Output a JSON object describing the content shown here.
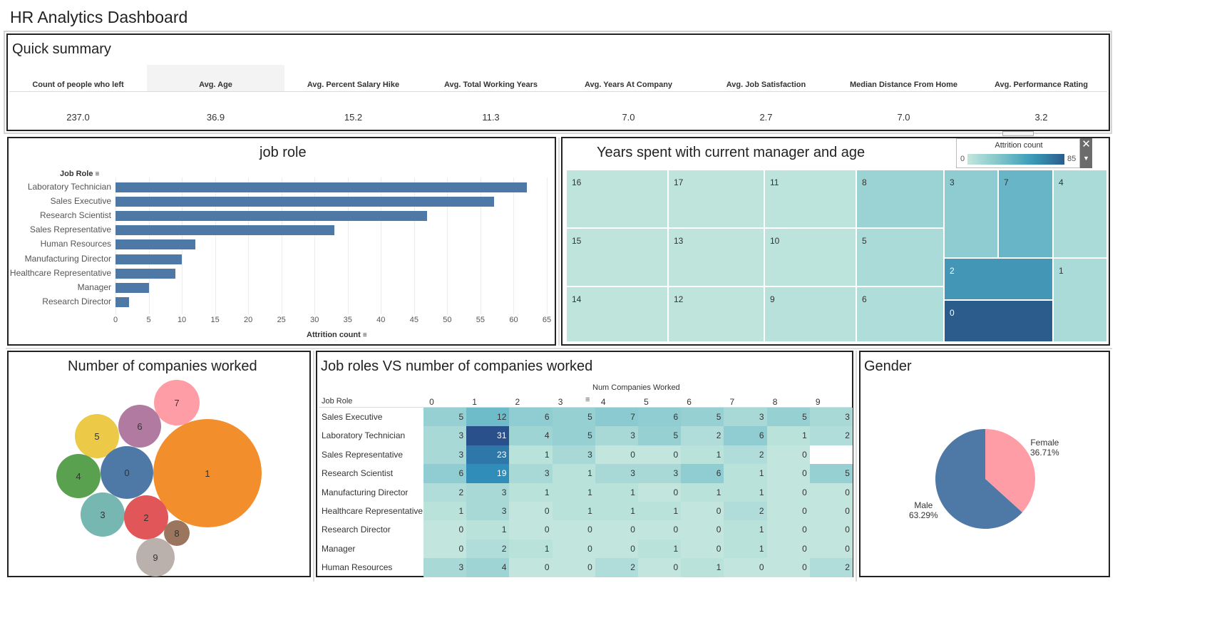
{
  "page": {
    "title": "HR Analytics Dashboard"
  },
  "summary": {
    "title": "Quick summary",
    "columns": [
      {
        "label": "Count of people who left",
        "value": "237.0"
      },
      {
        "label": "Avg. Age",
        "value": "36.9"
      },
      {
        "label": "Avg. Percent Salary Hike",
        "value": "15.2"
      },
      {
        "label": "Avg. Total Working Years",
        "value": "11.3"
      },
      {
        "label": "Avg. Years At Company",
        "value": "7.0"
      },
      {
        "label": "Avg. Job Satisfaction",
        "value": "2.7"
      },
      {
        "label": "Median Distance From Home",
        "value": "7.0"
      },
      {
        "label": "Avg. Performance Rating",
        "value": "3.2"
      }
    ]
  },
  "job_role_chart": {
    "title": "job role",
    "row_header": "Job Role",
    "xlabel": "Attrition count",
    "ticks": [
      "0",
      "5",
      "10",
      "15",
      "20",
      "25",
      "30",
      "35",
      "40",
      "45",
      "50",
      "55",
      "60",
      "65"
    ]
  },
  "treemap": {
    "title": "Years spent with current manager and age",
    "legend": {
      "title": "Attrition count",
      "min": "0",
      "max": "85"
    },
    "cells": [
      {
        "label": "16",
        "value": 2
      },
      {
        "label": "17",
        "value": 2
      },
      {
        "label": "11",
        "value": 3
      },
      {
        "label": "8",
        "value": 20
      },
      {
        "label": "3",
        "value": 25
      },
      {
        "label": "7",
        "value": 40
      },
      {
        "label": "4",
        "value": 12
      },
      {
        "label": "15",
        "value": 2
      },
      {
        "label": "13",
        "value": 2
      },
      {
        "label": "10",
        "value": 3
      },
      {
        "label": "5",
        "value": 12
      },
      {
        "label": "2",
        "value": 55
      },
      {
        "label": "1",
        "value": 12
      },
      {
        "label": "14",
        "value": 2
      },
      {
        "label": "12",
        "value": 2
      },
      {
        "label": "9",
        "value": 5
      },
      {
        "label": "6",
        "value": 10
      },
      {
        "label": "0",
        "value": 85
      }
    ]
  },
  "bubbles": {
    "title": "Number of companies worked",
    "items": [
      {
        "label": "7",
        "color": "#ff9da7"
      },
      {
        "label": "6",
        "color": "#b07aa1"
      },
      {
        "label": "5",
        "color": "#edc948"
      },
      {
        "label": "1",
        "color": "#f28e2b"
      },
      {
        "label": "4",
        "color": "#59a14f"
      },
      {
        "label": "0",
        "color": "#4e79a7"
      },
      {
        "label": "3",
        "color": "#76b7b2"
      },
      {
        "label": "2",
        "color": "#e15759"
      },
      {
        "label": "8",
        "color": "#9c755f"
      },
      {
        "label": "9",
        "color": "#bab0ac"
      }
    ]
  },
  "heatmap": {
    "title": "Job roles VS number of companies worked",
    "col_title": "Num Companies Worked",
    "row_header": "Job Role",
    "columns": [
      "0",
      "1",
      "2",
      "3",
      "4",
      "5",
      "6",
      "7",
      "8",
      "9"
    ],
    "rows": [
      {
        "role": "Sales Executive",
        "values": [
          5,
          12,
          6,
          5,
          7,
          6,
          5,
          3,
          5,
          3
        ]
      },
      {
        "role": "Laboratory Technician",
        "values": [
          3,
          31,
          4,
          5,
          3,
          5,
          2,
          6,
          1,
          2
        ]
      },
      {
        "role": "Sales Representative",
        "values": [
          3,
          23,
          1,
          3,
          0,
          0,
          1,
          2,
          0,
          null
        ]
      },
      {
        "role": "Research Scientist",
        "values": [
          6,
          19,
          3,
          1,
          3,
          3,
          6,
          1,
          0,
          5
        ]
      },
      {
        "role": "Manufacturing Director",
        "values": [
          2,
          3,
          1,
          1,
          1,
          0,
          1,
          1,
          0,
          0
        ]
      },
      {
        "role": "Healthcare Representative",
        "values": [
          1,
          3,
          0,
          1,
          1,
          1,
          0,
          2,
          0,
          0
        ]
      },
      {
        "role": "Research Director",
        "values": [
          0,
          1,
          0,
          0,
          0,
          0,
          0,
          1,
          0,
          0
        ]
      },
      {
        "role": "Manager",
        "values": [
          0,
          2,
          1,
          0,
          0,
          1,
          0,
          1,
          0,
          0
        ]
      },
      {
        "role": "Human Resources",
        "values": [
          3,
          4,
          0,
          0,
          2,
          0,
          1,
          0,
          0,
          2
        ]
      }
    ]
  },
  "gender": {
    "title": "Gender",
    "female_label": "Female",
    "female_pct": "36.71%",
    "male_label": "Male",
    "male_pct": "63.29%"
  },
  "chart_data": [
    {
      "type": "bar",
      "title": "job role",
      "xlabel": "Attrition count",
      "ylabel": "Job Role",
      "categories": [
        "Laboratory Technician",
        "Sales Executive",
        "Research Scientist",
        "Sales Representative",
        "Human Resources",
        "Manufacturing Director",
        "Healthcare Representative",
        "Manager",
        "Research Director"
      ],
      "values": [
        62,
        57,
        47,
        33,
        12,
        10,
        9,
        5,
        2
      ],
      "xlim": [
        0,
        65
      ],
      "grid": true
    },
    {
      "type": "pie",
      "title": "Gender",
      "categories": [
        "Female",
        "Male"
      ],
      "values": [
        36.71,
        63.29
      ],
      "colors": [
        "#ff9da7",
        "#4e79a7"
      ]
    }
  ]
}
